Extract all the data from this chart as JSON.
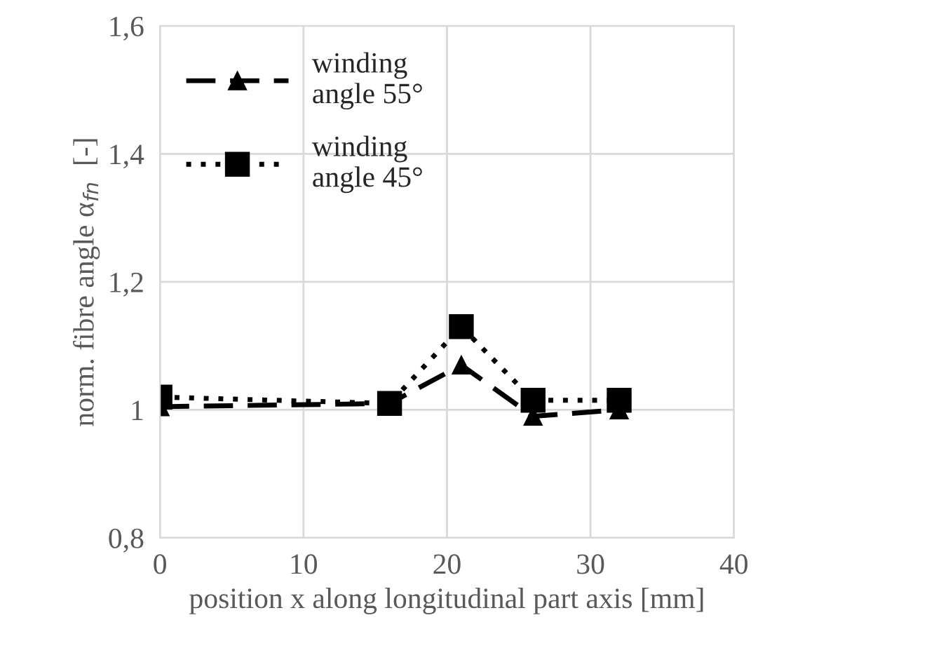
{
  "chart_data": {
    "type": "line",
    "xlabel": "position x along longitudinal part axis [mm]",
    "ylabel": "norm. fibre angle α$_{fn}$  [-]",
    "xlim": [
      0,
      40
    ],
    "xticks": [
      0,
      10,
      20,
      30,
      40
    ],
    "ylim": [
      0.8,
      1.6
    ],
    "yticks": [
      {
        "value": 0.8,
        "label": "0,8"
      },
      {
        "value": 1,
        "label": "1"
      },
      {
        "value": 1.2,
        "label": "1,2"
      },
      {
        "value": 1.4,
        "label": "1,4"
      },
      {
        "value": 1.6,
        "label": "1,6"
      }
    ],
    "grid": true,
    "legend": "top left",
    "series": [
      {
        "name": "winding\nangle 55°",
        "color": "#000000",
        "x": [
          0,
          16,
          21,
          26,
          32
        ],
        "values": [
          1.005,
          1.01,
          1.07,
          0.99,
          1.0
        ],
        "marker": "triangle",
        "line_style": "dashed"
      },
      {
        "name": "winding\nangle 45°",
        "color": "#000000",
        "x": [
          0,
          16,
          21,
          26,
          32
        ],
        "values": [
          1.02,
          1.01,
          1.13,
          1.015,
          1.015
        ],
        "marker": "square",
        "line_style": "dotted"
      }
    ]
  }
}
